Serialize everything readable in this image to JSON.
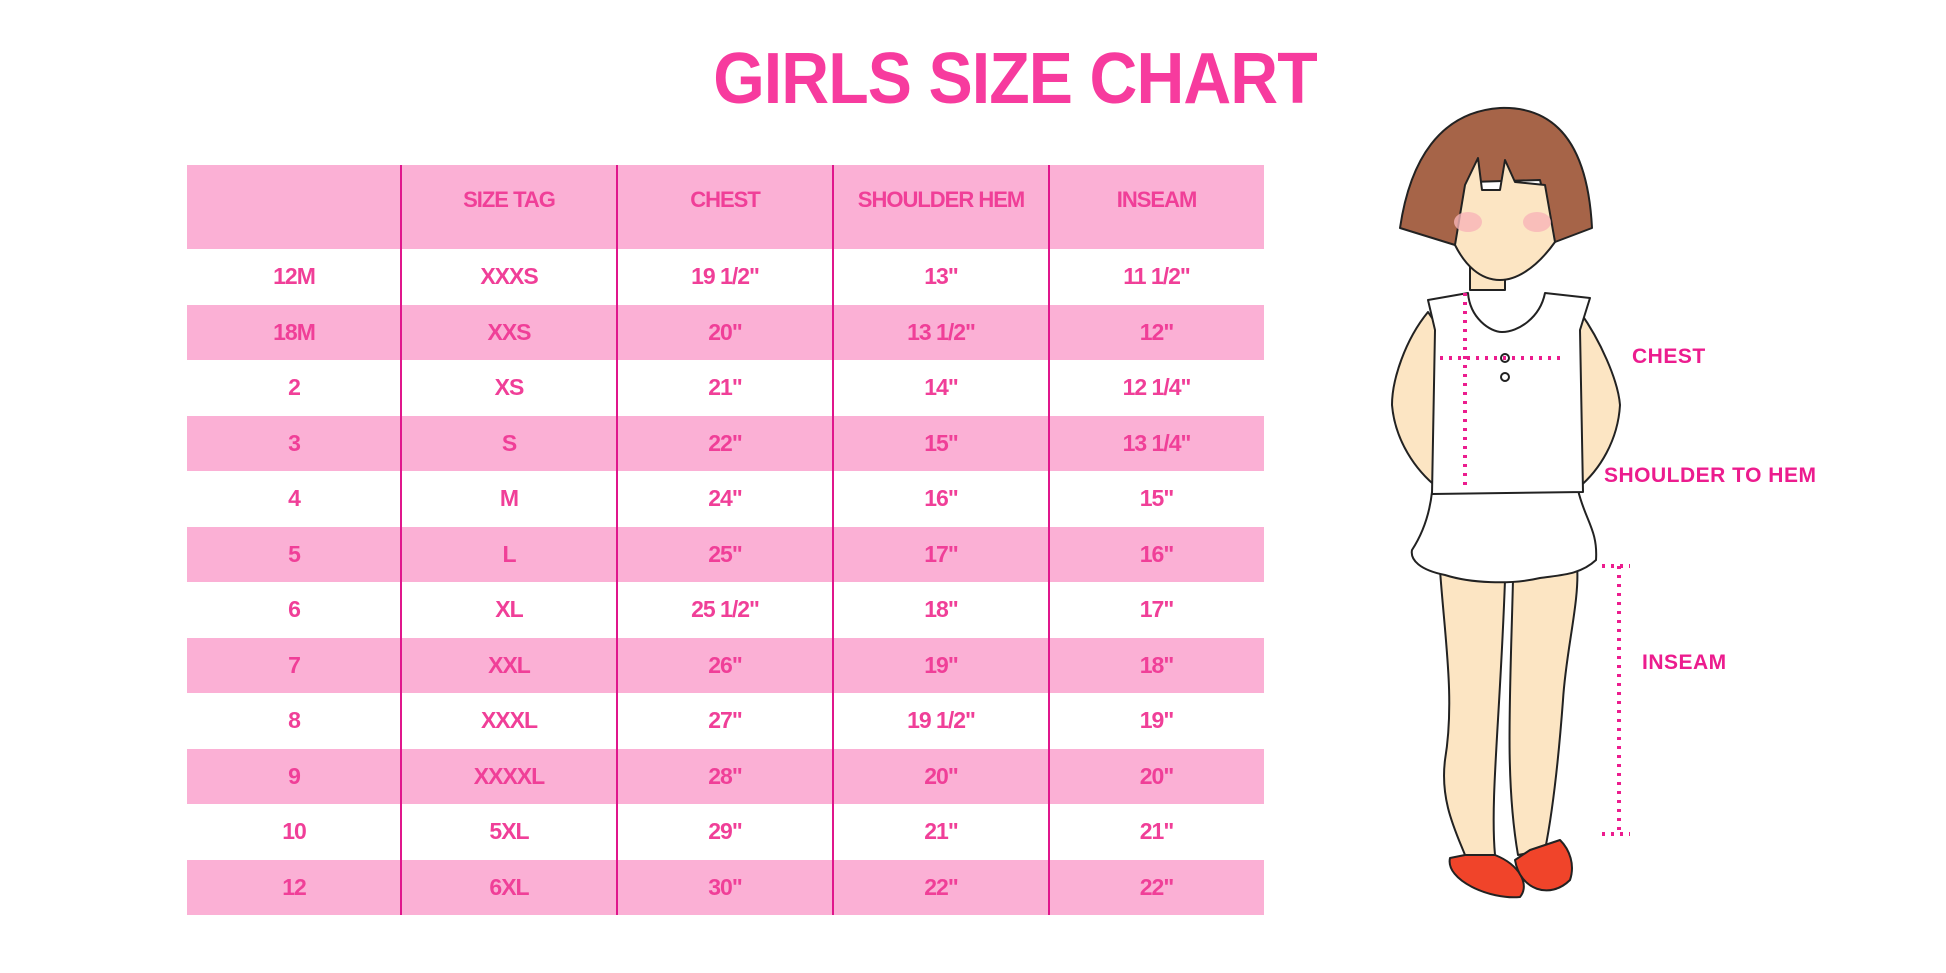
{
  "title": "GIRLS SIZE CHART",
  "table": {
    "headers": [
      "",
      "SIZE TAG",
      "CHEST",
      "SHOULDER HEM",
      "INSEAM"
    ],
    "rows": [
      [
        "12M",
        "XXXS",
        "19 1/2\"",
        "13\"",
        "11 1/2\""
      ],
      [
        "18M",
        "XXS",
        "20\"",
        "13 1/2\"",
        "12\""
      ],
      [
        "2",
        "XS",
        "21\"",
        "14\"",
        "12 1/4\""
      ],
      [
        "3",
        "S",
        "22\"",
        "15\"",
        "13 1/4\""
      ],
      [
        "4",
        "M",
        "24\"",
        "16\"",
        "15\""
      ],
      [
        "5",
        "L",
        "25\"",
        "17\"",
        "16\""
      ],
      [
        "6",
        "XL",
        "25 1/2\"",
        "18\"",
        "17\""
      ],
      [
        "7",
        "XXL",
        "26\"",
        "19\"",
        "18\""
      ],
      [
        "8",
        "XXXL",
        "27\"",
        "19 1/2\"",
        "19\""
      ],
      [
        "9",
        "XXXXL",
        "28\"",
        "20\"",
        "20\""
      ],
      [
        "10",
        "5XL",
        "29\"",
        "21\"",
        "21\""
      ],
      [
        "12",
        "6XL",
        "30\"",
        "22\"",
        "22\""
      ]
    ]
  },
  "figure": {
    "labels": {
      "chest": "CHEST",
      "shoulder_to_hem": "SHOULDER TO HEM",
      "inseam": "INSEAM"
    }
  },
  "colors": {
    "title": "#f73b9e",
    "stripe": "#fbb0d5",
    "divider": "#e0168c",
    "label": "#ec1c8e"
  }
}
